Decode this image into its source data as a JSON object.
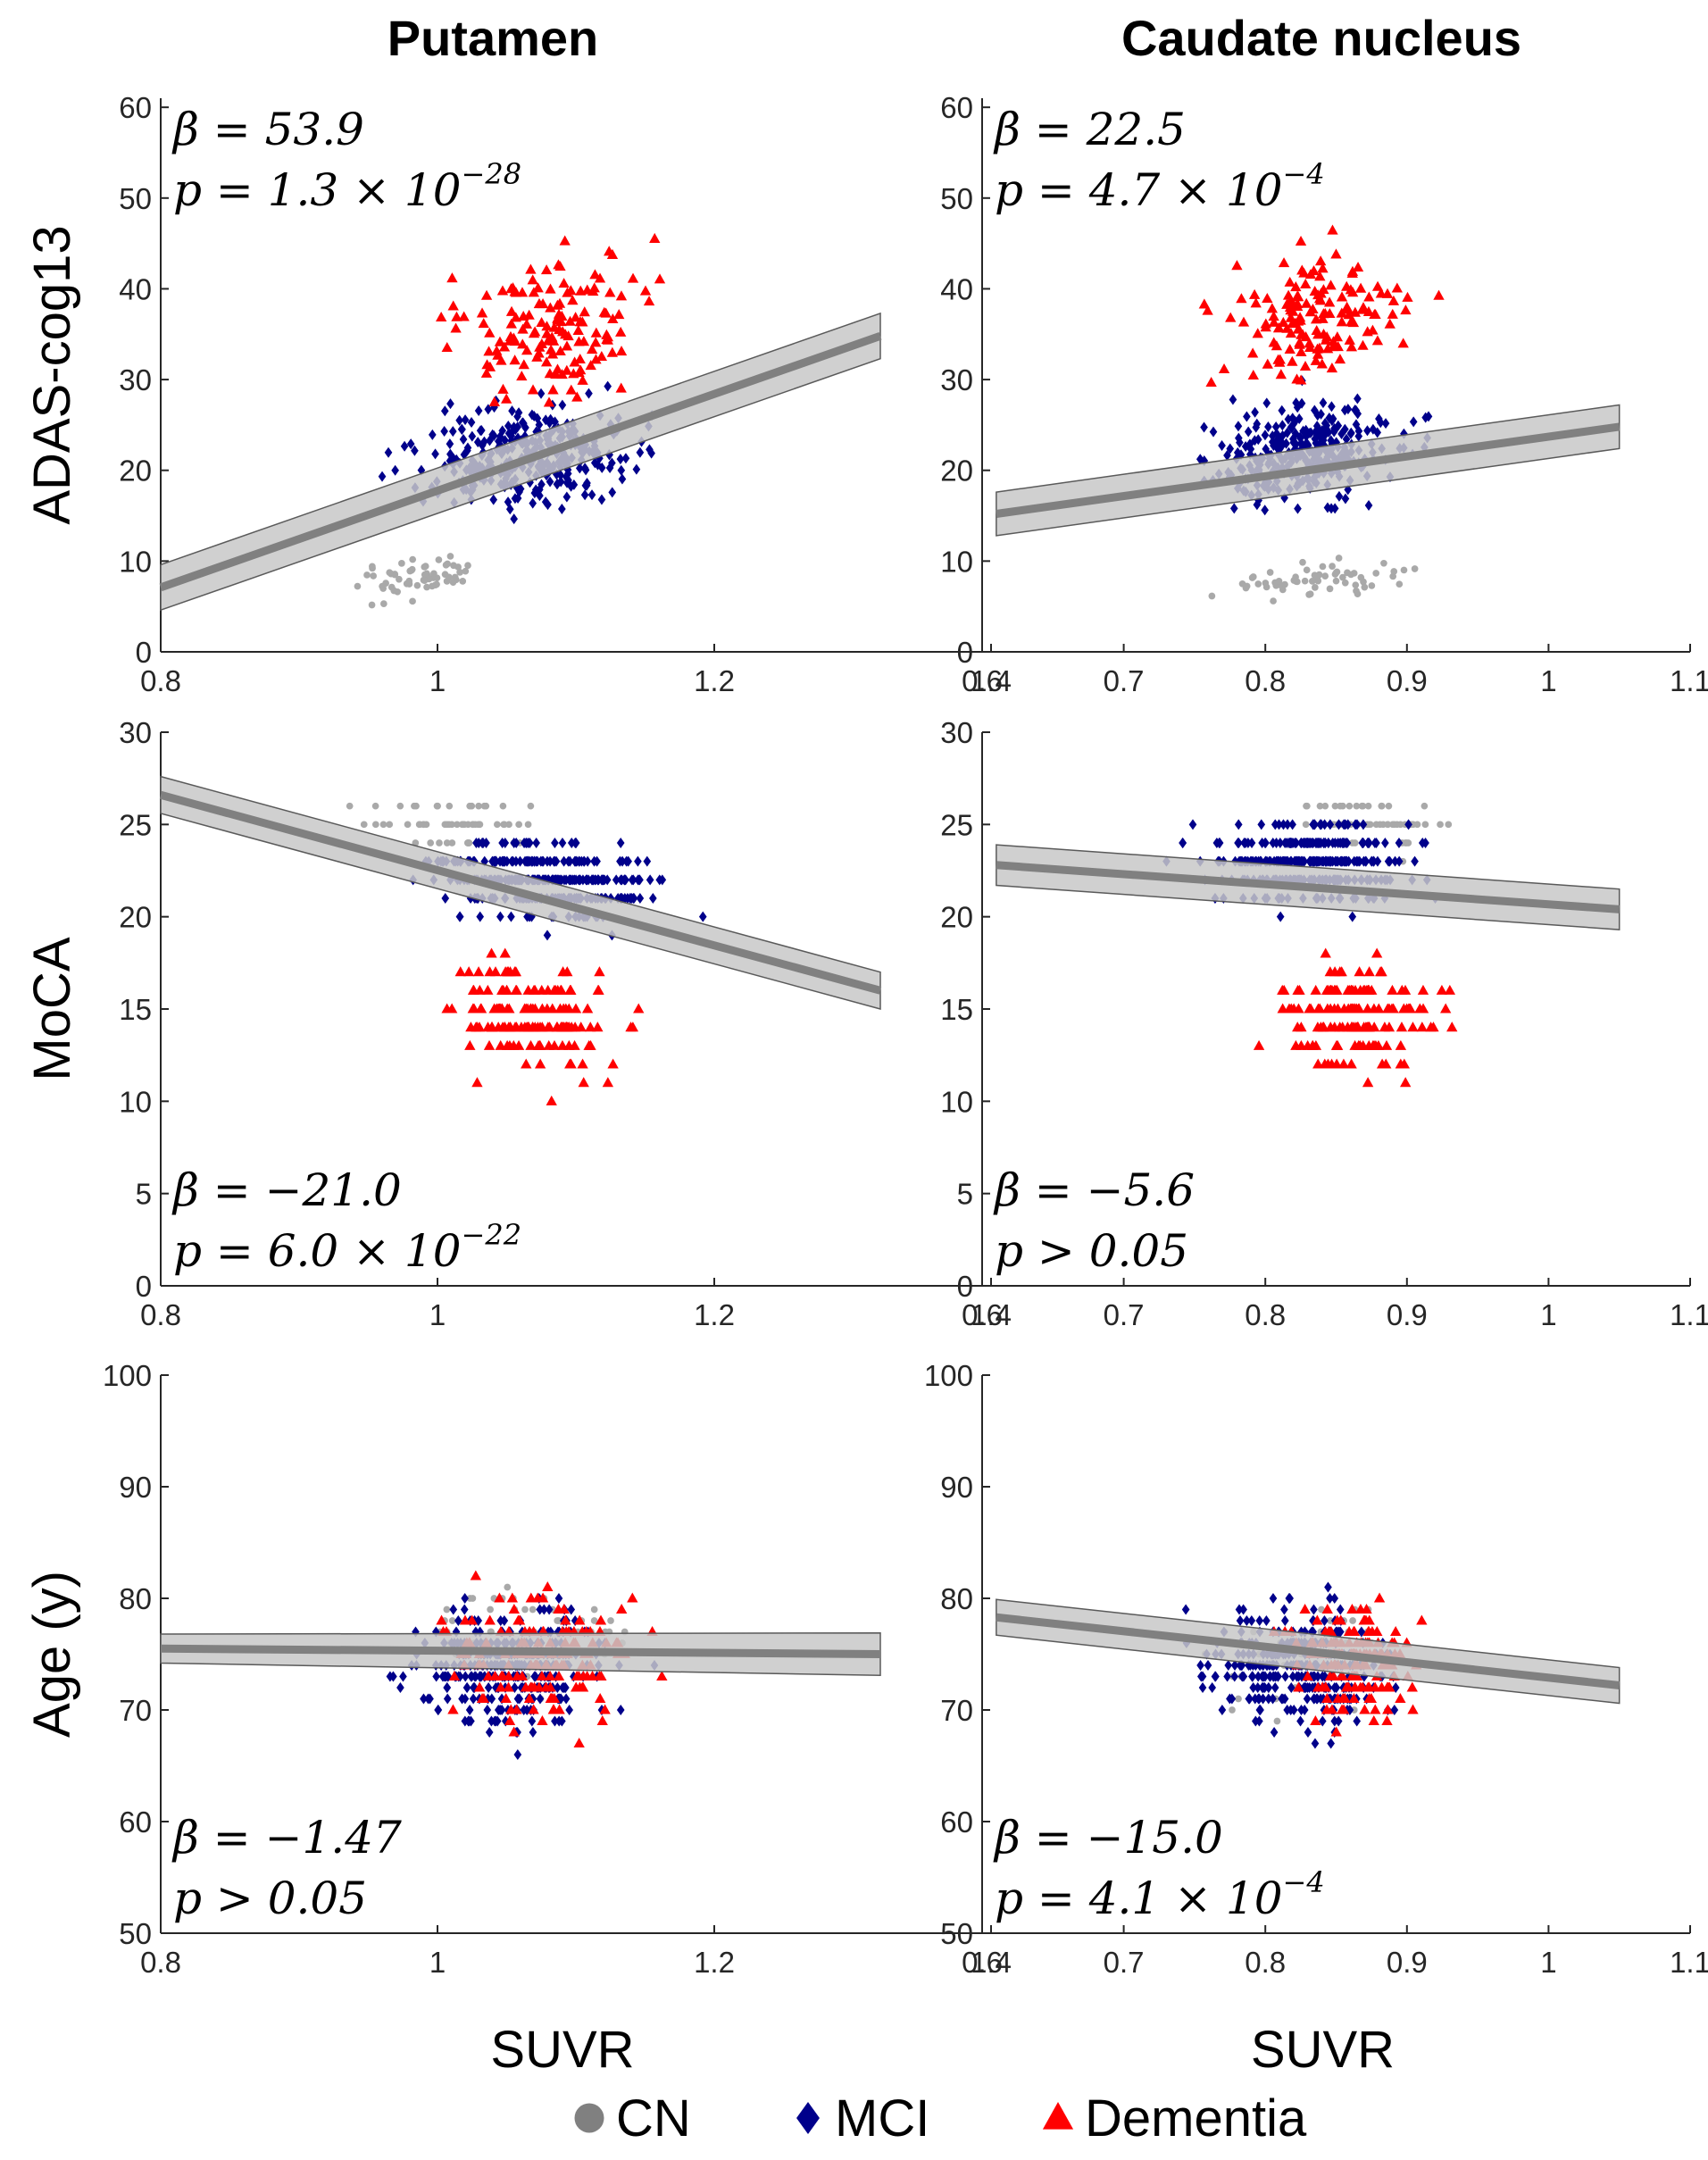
{
  "column_titles": [
    "Putamen",
    "Caudate nucleus"
  ],
  "legend": [
    {
      "label": "CN",
      "marker": "circle",
      "color": "#a9a9a9"
    },
    {
      "label": "MCI",
      "marker": "diamond",
      "color": "#00008b"
    },
    {
      "label": "Dementia",
      "marker": "triangle",
      "color": "#ff0000"
    }
  ],
  "colors": {
    "fit_line": "#808080",
    "ci_band": "#c8c8c8",
    "axis": "#262626"
  },
  "chart_data": [
    {
      "type": "scatter",
      "row": 0,
      "col": 0,
      "xlabel": "",
      "ylabel": "ADAS-cog13",
      "xlim": [
        0.8,
        1.4
      ],
      "ylim": [
        0,
        61
      ],
      "xticks": [
        0.8,
        1,
        1.2,
        1.4
      ],
      "xtick_labels": [
        "0.8",
        "1",
        "1.2",
        "1.4"
      ],
      "yticks": [
        0,
        10,
        20,
        30,
        40,
        50,
        60
      ],
      "fit": {
        "x": [
          0.8,
          1.32
        ],
        "y": [
          7.1,
          34.8
        ],
        "ci": [
          2.5,
          2.5
        ]
      },
      "stats": {
        "beta": "β = 53.9",
        "p_main": "p = 1.3 × 10",
        "p_exp": "−28"
      },
      "stats_pos": "top-left",
      "seed": 11,
      "series": [
        {
          "name": "CN",
          "n": 60,
          "x": [
            0.85,
            1.12
          ],
          "y": [
            1,
            15
          ]
        },
        {
          "name": "MCI",
          "n": 330,
          "x": [
            0.83,
            1.3
          ],
          "y": [
            3,
            40
          ]
        },
        {
          "name": "Dementia",
          "n": 150,
          "x": [
            0.86,
            1.3
          ],
          "y": [
            11,
            61
          ]
        }
      ]
    },
    {
      "type": "scatter",
      "row": 0,
      "col": 1,
      "xlabel": "",
      "ylabel": "",
      "xlim": [
        0.6,
        1.1
      ],
      "ylim": [
        0,
        61
      ],
      "xticks": [
        0.6,
        0.7,
        0.8,
        0.9,
        1,
        1.1
      ],
      "xtick_labels": [
        "0.6",
        "0.7",
        "0.8",
        "0.9",
        "1",
        "1.1"
      ],
      "yticks": [
        0,
        10,
        20,
        30,
        40,
        50,
        60
      ],
      "fit": {
        "x": [
          0.61,
          1.05
        ],
        "y": [
          15.2,
          24.8
        ],
        "ci": [
          2.4,
          2.4
        ]
      },
      "stats": {
        "beta": "β = 22.5",
        "p_main": "p = 4.7 × 10",
        "p_exp": "−4"
      },
      "stats_pos": "top-left",
      "seed": 23,
      "series": [
        {
          "name": "CN",
          "n": 60,
          "x": [
            0.63,
            1.05
          ],
          "y": [
            1,
            15
          ]
        },
        {
          "name": "MCI",
          "n": 320,
          "x": [
            0.61,
            1.05
          ],
          "y": [
            3,
            41
          ]
        },
        {
          "name": "Dementia",
          "n": 150,
          "x": [
            0.64,
            1.04
          ],
          "y": [
            13,
            61
          ]
        }
      ]
    },
    {
      "type": "scatter",
      "row": 1,
      "col": 0,
      "xlabel": "",
      "ylabel": "MoCA",
      "xlim": [
        0.8,
        1.4
      ],
      "ylim": [
        0,
        30
      ],
      "xticks": [
        0.8,
        1,
        1.2,
        1.4
      ],
      "xtick_labels": [
        "0.8",
        "1",
        "1.2",
        "1.4"
      ],
      "yticks": [
        0,
        5,
        10,
        15,
        20,
        25,
        30
      ],
      "fit": {
        "x": [
          0.8,
          1.32
        ],
        "y": [
          26.6,
          16.0
        ],
        "ci": [
          1.0,
          1.0
        ]
      },
      "stats": {
        "beta": "β = −21.0",
        "p_main": "p = 6.0 × 10",
        "p_exp": "−22"
      },
      "stats_pos": "bottom-left",
      "seed": 37,
      "series": [
        {
          "name": "CN",
          "n": 60,
          "x": [
            0.82,
            1.2
          ],
          "y": [
            20,
            30
          ]
        },
        {
          "name": "MCI",
          "n": 330,
          "x": [
            0.84,
            1.32
          ],
          "y": [
            14,
            30
          ]
        },
        {
          "name": "Dementia",
          "n": 150,
          "x": [
            0.86,
            1.28
          ],
          "y": [
            4,
            25
          ]
        }
      ]
    },
    {
      "type": "scatter",
      "row": 1,
      "col": 1,
      "xlabel": "",
      "ylabel": "",
      "xlim": [
        0.6,
        1.1
      ],
      "ylim": [
        0,
        30
      ],
      "xticks": [
        0.6,
        0.7,
        0.8,
        0.9,
        1,
        1.1
      ],
      "xtick_labels": [
        "0.6",
        "0.7",
        "0.8",
        "0.9",
        "1",
        "1.1"
      ],
      "yticks": [
        0,
        5,
        10,
        15,
        20,
        25,
        30
      ],
      "fit": {
        "x": [
          0.61,
          1.05
        ],
        "y": [
          22.8,
          20.4
        ],
        "ci": [
          1.1,
          1.1
        ]
      },
      "stats": {
        "beta": "β = −5.6",
        "p_main": "p > 0.05",
        "p_exp": ""
      },
      "stats_pos": "bottom-left",
      "seed": 41,
      "series": [
        {
          "name": "CN",
          "n": 60,
          "x": [
            0.7,
            1.05
          ],
          "y": [
            20,
            30
          ]
        },
        {
          "name": "MCI",
          "n": 320,
          "x": [
            0.61,
            1.05
          ],
          "y": [
            16,
            30
          ]
        },
        {
          "name": "Dementia",
          "n": 150,
          "x": [
            0.7,
            1.03
          ],
          "y": [
            4,
            25
          ]
        }
      ]
    },
    {
      "type": "scatter",
      "row": 2,
      "col": 0,
      "xlabel": "SUVR",
      "ylabel": "Age (y)",
      "xlim": [
        0.8,
        1.4
      ],
      "ylim": [
        50,
        100
      ],
      "xticks": [
        0.8,
        1,
        1.2,
        1.4
      ],
      "xtick_labels": [
        "0.8",
        "1",
        "1.2",
        "1.4"
      ],
      "yticks": [
        50,
        60,
        70,
        80,
        90,
        100
      ],
      "fit": {
        "x": [
          0.8,
          1.32
        ],
        "y": [
          75.5,
          75.0
        ],
        "ci": [
          1.3,
          1.9
        ]
      },
      "stats": {
        "beta": "β = −1.47",
        "p_main": "p > 0.05",
        "p_exp": ""
      },
      "stats_pos": "bottom-left",
      "seed": 53,
      "series": [
        {
          "name": "CN",
          "n": 60,
          "x": [
            0.82,
            1.3
          ],
          "y": [
            62,
            93
          ]
        },
        {
          "name": "MCI",
          "n": 330,
          "x": [
            0.84,
            1.27
          ],
          "y": [
            56,
            92
          ]
        },
        {
          "name": "Dementia",
          "n": 150,
          "x": [
            0.86,
            1.29
          ],
          "y": [
            56,
            93
          ]
        }
      ]
    },
    {
      "type": "scatter",
      "row": 2,
      "col": 1,
      "xlabel": "SUVR",
      "ylabel": "",
      "xlim": [
        0.6,
        1.1
      ],
      "ylim": [
        50,
        100
      ],
      "xticks": [
        0.6,
        0.7,
        0.8,
        0.9,
        1,
        1.1
      ],
      "xtick_labels": [
        "0.6",
        "0.7",
        "0.8",
        "0.9",
        "1",
        "1.1"
      ],
      "yticks": [
        50,
        60,
        70,
        80,
        90,
        100
      ],
      "fit": {
        "x": [
          0.61,
          1.05
        ],
        "y": [
          78.3,
          72.2
        ],
        "ci": [
          1.6,
          1.6
        ]
      },
      "stats": {
        "beta": "β = −15.0",
        "p_main": "p = 4.1 × 10",
        "p_exp": "−4"
      },
      "stats_pos": "bottom-left",
      "seed": 67,
      "series": [
        {
          "name": "CN",
          "n": 60,
          "x": [
            0.62,
            1.05
          ],
          "y": [
            57,
            93
          ]
        },
        {
          "name": "MCI",
          "n": 320,
          "x": [
            0.61,
            1.04
          ],
          "y": [
            56,
            92
          ]
        },
        {
          "name": "Dementia",
          "n": 150,
          "x": [
            0.72,
            1.0
          ],
          "y": [
            56,
            93
          ]
        }
      ]
    }
  ]
}
